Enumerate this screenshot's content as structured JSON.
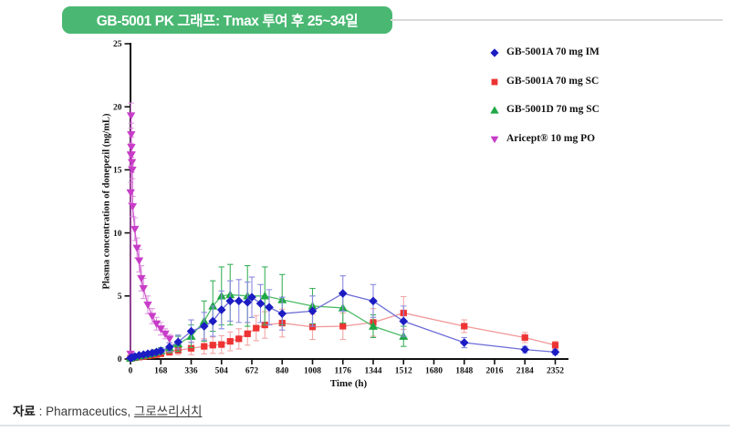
{
  "header": {
    "title": "GB-5001 PK 그래프: Tmax 투여 후 25~34일"
  },
  "footer": {
    "source_label": "자료",
    "source_sep": " : ",
    "source_text": "Pharmaceutics, ",
    "source_org": "그로쓰리서치"
  },
  "colors": {
    "banner_green": "#4ab873",
    "axis": "#111111",
    "rule_gray": "#d9d9d9"
  },
  "chart_data": {
    "type": "line",
    "title": "",
    "xlabel": "Time (h)",
    "ylabel": "Plasma concentration of donepezil (ng/mL)",
    "xlim": [
      0,
      2420
    ],
    "ylim": [
      0,
      25
    ],
    "xticks": [
      0,
      168,
      336,
      504,
      672,
      840,
      1008,
      1176,
      1344,
      1512,
      1680,
      1848,
      2016,
      2184,
      2352
    ],
    "yticks": [
      0,
      5,
      10,
      15,
      20,
      25
    ],
    "grid": false,
    "legend_position": "top-right",
    "series": [
      {
        "name": "GB-5001A 70 mg IM",
        "marker": "diamond",
        "color": "#1c1cc4",
        "line_color": "#6e6ed8",
        "err_color": "#8a8ae0",
        "x": [
          0,
          8,
          24,
          48,
          72,
          96,
          120,
          144,
          168,
          216,
          264,
          336,
          408,
          456,
          504,
          552,
          600,
          648,
          672,
          720,
          768,
          840,
          1008,
          1176,
          1344,
          1512,
          1848,
          2184,
          2352
        ],
        "y": [
          0.08,
          0.12,
          0.2,
          0.3,
          0.35,
          0.42,
          0.48,
          0.55,
          0.65,
          0.95,
          1.35,
          2.2,
          2.6,
          3.0,
          3.9,
          4.6,
          4.6,
          4.5,
          4.9,
          4.4,
          4.1,
          3.6,
          3.8,
          5.2,
          4.6,
          3.0,
          1.3,
          0.75,
          0.55
        ],
        "err": [
          0.05,
          0.05,
          0.08,
          0.1,
          0.1,
          0.12,
          0.12,
          0.15,
          0.2,
          0.35,
          0.55,
          0.9,
          1.1,
          1.2,
          1.5,
          1.6,
          1.7,
          1.6,
          1.6,
          1.5,
          1.4,
          1.3,
          1.2,
          1.4,
          1.3,
          1.2,
          0.4,
          0.25,
          0.2
        ]
      },
      {
        "name": "GB-5001A 70 mg SC",
        "marker": "square",
        "color": "#ee3333",
        "line_color": "#f29898",
        "err_color": "#f4a6a6",
        "x": [
          0,
          24,
          48,
          72,
          96,
          120,
          144,
          168,
          216,
          264,
          336,
          408,
          456,
          504,
          552,
          600,
          648,
          696,
          744,
          840,
          1008,
          1176,
          1344,
          1512,
          1848,
          2184,
          2352
        ],
        "y": [
          0.05,
          0.1,
          0.15,
          0.2,
          0.25,
          0.3,
          0.35,
          0.42,
          0.55,
          0.7,
          0.85,
          1.0,
          1.1,
          1.15,
          1.4,
          1.6,
          2.0,
          2.45,
          2.7,
          2.85,
          2.55,
          2.6,
          2.9,
          3.65,
          2.6,
          1.7,
          1.1
        ],
        "err": [
          0.03,
          0.05,
          0.06,
          0.08,
          0.1,
          0.1,
          0.12,
          0.15,
          0.25,
          0.35,
          0.5,
          0.6,
          0.65,
          0.7,
          0.75,
          0.8,
          0.9,
          1.0,
          1.05,
          1.1,
          1.0,
          1.05,
          1.1,
          1.3,
          0.5,
          0.4,
          0.3
        ]
      },
      {
        "name": "GB-5001D 70 mg SC",
        "marker": "triangle-up",
        "color": "#1fa845",
        "line_color": "#4cbc68",
        "err_color": "#3db25c",
        "x": [
          0,
          24,
          48,
          72,
          96,
          120,
          144,
          168,
          216,
          264,
          336,
          408,
          456,
          504,
          552,
          648,
          744,
          840,
          1008,
          1176,
          1344,
          1512
        ],
        "y": [
          0.07,
          0.15,
          0.25,
          0.3,
          0.38,
          0.45,
          0.55,
          0.65,
          0.9,
          1.2,
          1.8,
          3.0,
          4.2,
          5.0,
          5.1,
          5.0,
          5.0,
          4.7,
          4.2,
          4.05,
          2.6,
          1.8
        ],
        "err": [
          0.04,
          0.07,
          0.1,
          0.12,
          0.15,
          0.18,
          0.2,
          0.25,
          0.4,
          0.6,
          0.9,
          1.6,
          2.0,
          2.3,
          2.4,
          2.4,
          2.3,
          2.0,
          1.4,
          1.2,
          0.9,
          0.8
        ]
      },
      {
        "name": "Aricept® 10 mg PO",
        "marker": "triangle-down",
        "color": "#c83cc8",
        "line_color": "#d060d0",
        "err_color": "#e09ae0",
        "x": [
          0.5,
          1,
          2,
          3,
          4,
          5,
          6,
          8,
          10,
          12,
          24,
          36,
          48,
          60,
          72,
          96,
          120,
          144,
          168,
          192,
          216
        ],
        "y": [
          0.4,
          13.2,
          16.2,
          19.3,
          17.8,
          16.8,
          16.2,
          15.6,
          15.0,
          12.1,
          10.3,
          8.8,
          7.8,
          6.4,
          5.6,
          4.3,
          3.4,
          2.8,
          2.4,
          2.0,
          1.6
        ],
        "err": [
          0.2,
          0.8,
          0.9,
          1.0,
          0.9,
          0.8,
          0.8,
          0.8,
          0.7,
          0.8,
          0.9,
          0.8,
          0.9,
          1.0,
          0.8,
          0.7,
          0.6,
          0.5,
          0.5,
          0.4,
          0.35
        ]
      }
    ]
  }
}
